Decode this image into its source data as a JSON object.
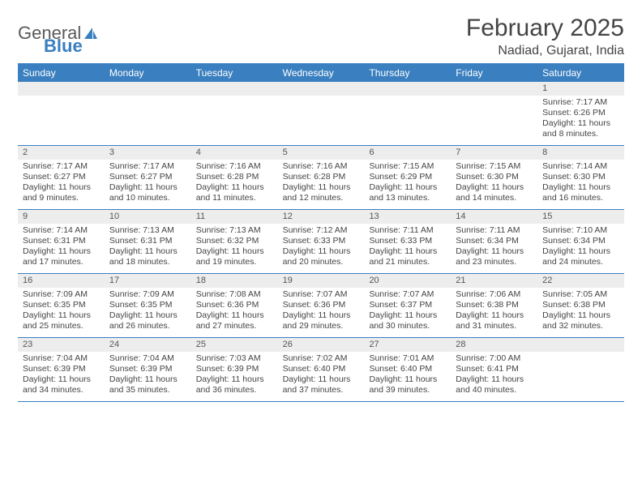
{
  "logo": {
    "word1": "General",
    "word2": "Blue"
  },
  "header": {
    "title": "February 2025",
    "location": "Nadiad, Gujarat, India"
  },
  "colors": {
    "accent": "#3a7fbf",
    "daynum_bg": "#ededed",
    "text": "#444444",
    "bg": "#ffffff"
  },
  "dayNames": [
    "Sunday",
    "Monday",
    "Tuesday",
    "Wednesday",
    "Thursday",
    "Friday",
    "Saturday"
  ],
  "weeks": [
    [
      {
        "blank": true
      },
      {
        "blank": true
      },
      {
        "blank": true
      },
      {
        "blank": true
      },
      {
        "blank": true
      },
      {
        "blank": true
      },
      {
        "day": "1",
        "sunrise": "Sunrise: 7:17 AM",
        "sunset": "Sunset: 6:26 PM",
        "daylight1": "Daylight: 11 hours",
        "daylight2": "and 8 minutes."
      }
    ],
    [
      {
        "day": "2",
        "sunrise": "Sunrise: 7:17 AM",
        "sunset": "Sunset: 6:27 PM",
        "daylight1": "Daylight: 11 hours",
        "daylight2": "and 9 minutes."
      },
      {
        "day": "3",
        "sunrise": "Sunrise: 7:17 AM",
        "sunset": "Sunset: 6:27 PM",
        "daylight1": "Daylight: 11 hours",
        "daylight2": "and 10 minutes."
      },
      {
        "day": "4",
        "sunrise": "Sunrise: 7:16 AM",
        "sunset": "Sunset: 6:28 PM",
        "daylight1": "Daylight: 11 hours",
        "daylight2": "and 11 minutes."
      },
      {
        "day": "5",
        "sunrise": "Sunrise: 7:16 AM",
        "sunset": "Sunset: 6:28 PM",
        "daylight1": "Daylight: 11 hours",
        "daylight2": "and 12 minutes."
      },
      {
        "day": "6",
        "sunrise": "Sunrise: 7:15 AM",
        "sunset": "Sunset: 6:29 PM",
        "daylight1": "Daylight: 11 hours",
        "daylight2": "and 13 minutes."
      },
      {
        "day": "7",
        "sunrise": "Sunrise: 7:15 AM",
        "sunset": "Sunset: 6:30 PM",
        "daylight1": "Daylight: 11 hours",
        "daylight2": "and 14 minutes."
      },
      {
        "day": "8",
        "sunrise": "Sunrise: 7:14 AM",
        "sunset": "Sunset: 6:30 PM",
        "daylight1": "Daylight: 11 hours",
        "daylight2": "and 16 minutes."
      }
    ],
    [
      {
        "day": "9",
        "sunrise": "Sunrise: 7:14 AM",
        "sunset": "Sunset: 6:31 PM",
        "daylight1": "Daylight: 11 hours",
        "daylight2": "and 17 minutes."
      },
      {
        "day": "10",
        "sunrise": "Sunrise: 7:13 AM",
        "sunset": "Sunset: 6:31 PM",
        "daylight1": "Daylight: 11 hours",
        "daylight2": "and 18 minutes."
      },
      {
        "day": "11",
        "sunrise": "Sunrise: 7:13 AM",
        "sunset": "Sunset: 6:32 PM",
        "daylight1": "Daylight: 11 hours",
        "daylight2": "and 19 minutes."
      },
      {
        "day": "12",
        "sunrise": "Sunrise: 7:12 AM",
        "sunset": "Sunset: 6:33 PM",
        "daylight1": "Daylight: 11 hours",
        "daylight2": "and 20 minutes."
      },
      {
        "day": "13",
        "sunrise": "Sunrise: 7:11 AM",
        "sunset": "Sunset: 6:33 PM",
        "daylight1": "Daylight: 11 hours",
        "daylight2": "and 21 minutes."
      },
      {
        "day": "14",
        "sunrise": "Sunrise: 7:11 AM",
        "sunset": "Sunset: 6:34 PM",
        "daylight1": "Daylight: 11 hours",
        "daylight2": "and 23 minutes."
      },
      {
        "day": "15",
        "sunrise": "Sunrise: 7:10 AM",
        "sunset": "Sunset: 6:34 PM",
        "daylight1": "Daylight: 11 hours",
        "daylight2": "and 24 minutes."
      }
    ],
    [
      {
        "day": "16",
        "sunrise": "Sunrise: 7:09 AM",
        "sunset": "Sunset: 6:35 PM",
        "daylight1": "Daylight: 11 hours",
        "daylight2": "and 25 minutes."
      },
      {
        "day": "17",
        "sunrise": "Sunrise: 7:09 AM",
        "sunset": "Sunset: 6:35 PM",
        "daylight1": "Daylight: 11 hours",
        "daylight2": "and 26 minutes."
      },
      {
        "day": "18",
        "sunrise": "Sunrise: 7:08 AM",
        "sunset": "Sunset: 6:36 PM",
        "daylight1": "Daylight: 11 hours",
        "daylight2": "and 27 minutes."
      },
      {
        "day": "19",
        "sunrise": "Sunrise: 7:07 AM",
        "sunset": "Sunset: 6:36 PM",
        "daylight1": "Daylight: 11 hours",
        "daylight2": "and 29 minutes."
      },
      {
        "day": "20",
        "sunrise": "Sunrise: 7:07 AM",
        "sunset": "Sunset: 6:37 PM",
        "daylight1": "Daylight: 11 hours",
        "daylight2": "and 30 minutes."
      },
      {
        "day": "21",
        "sunrise": "Sunrise: 7:06 AM",
        "sunset": "Sunset: 6:38 PM",
        "daylight1": "Daylight: 11 hours",
        "daylight2": "and 31 minutes."
      },
      {
        "day": "22",
        "sunrise": "Sunrise: 7:05 AM",
        "sunset": "Sunset: 6:38 PM",
        "daylight1": "Daylight: 11 hours",
        "daylight2": "and 32 minutes."
      }
    ],
    [
      {
        "day": "23",
        "sunrise": "Sunrise: 7:04 AM",
        "sunset": "Sunset: 6:39 PM",
        "daylight1": "Daylight: 11 hours",
        "daylight2": "and 34 minutes."
      },
      {
        "day": "24",
        "sunrise": "Sunrise: 7:04 AM",
        "sunset": "Sunset: 6:39 PM",
        "daylight1": "Daylight: 11 hours",
        "daylight2": "and 35 minutes."
      },
      {
        "day": "25",
        "sunrise": "Sunrise: 7:03 AM",
        "sunset": "Sunset: 6:39 PM",
        "daylight1": "Daylight: 11 hours",
        "daylight2": "and 36 minutes."
      },
      {
        "day": "26",
        "sunrise": "Sunrise: 7:02 AM",
        "sunset": "Sunset: 6:40 PM",
        "daylight1": "Daylight: 11 hours",
        "daylight2": "and 37 minutes."
      },
      {
        "day": "27",
        "sunrise": "Sunrise: 7:01 AM",
        "sunset": "Sunset: 6:40 PM",
        "daylight1": "Daylight: 11 hours",
        "daylight2": "and 39 minutes."
      },
      {
        "day": "28",
        "sunrise": "Sunrise: 7:00 AM",
        "sunset": "Sunset: 6:41 PM",
        "daylight1": "Daylight: 11 hours",
        "daylight2": "and 40 minutes."
      },
      {
        "blank": true
      }
    ]
  ]
}
